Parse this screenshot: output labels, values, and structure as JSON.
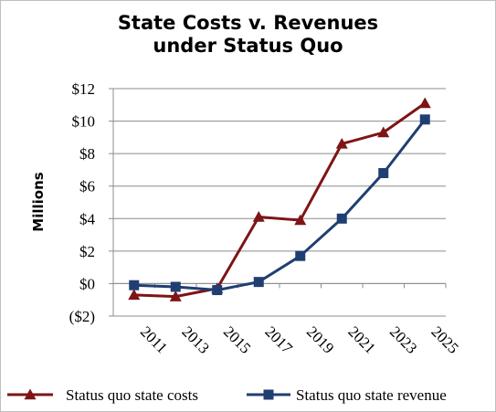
{
  "chart_data": {
    "type": "line",
    "title_lines": [
      "State Costs v. Revenues",
      "under Status Quo"
    ],
    "ylabel": "Millions",
    "xlabel": "",
    "x": [
      "2011",
      "2013",
      "2015",
      "2017",
      "2019",
      "2021",
      "2023",
      "2025"
    ],
    "ylim": [
      -2,
      12
    ],
    "y_ticks": [
      -2,
      0,
      2,
      4,
      6,
      8,
      10,
      12
    ],
    "y_tick_labels": [
      "($2)",
      "$0",
      "$2",
      "$4",
      "$6",
      "$8",
      "$10",
      "$12"
    ],
    "grid": true,
    "legend_position": "bottom",
    "series": [
      {
        "name": "Status quo state costs",
        "marker": "triangle",
        "color": "#7f1416",
        "values": [
          -0.7,
          -0.8,
          -0.3,
          4.1,
          3.9,
          8.6,
          9.3,
          11.1
        ]
      },
      {
        "name": "Status quo state revenue",
        "marker": "square",
        "color": "#1f3f73",
        "values": [
          -0.1,
          -0.2,
          -0.4,
          0.1,
          1.7,
          4.0,
          6.8,
          10.1
        ]
      }
    ]
  }
}
